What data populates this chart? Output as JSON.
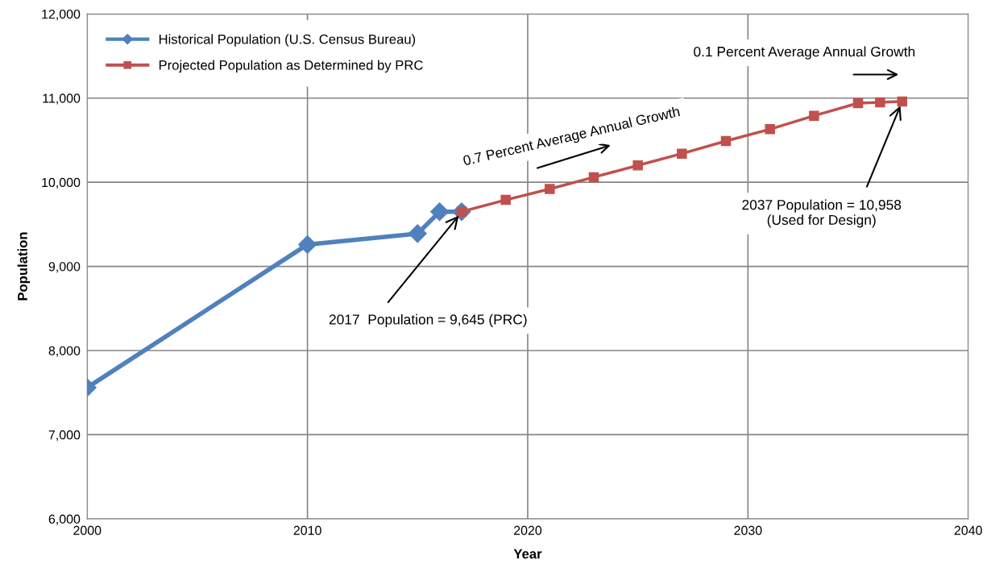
{
  "chart_data": {
    "type": "line",
    "xlabel": "Year",
    "ylabel": "Population",
    "xlim": [
      2000,
      2040
    ],
    "xticks": [
      2000,
      2010,
      2020,
      2030,
      2040
    ],
    "ylim": [
      6000,
      12000
    ],
    "yticks": [
      {
        "value": 6000,
        "label": "6,000"
      },
      {
        "value": 7000,
        "label": "7,000"
      },
      {
        "value": 8000,
        "label": "8,000"
      },
      {
        "value": 9000,
        "label": "9,000"
      },
      {
        "value": 10000,
        "label": "10,000"
      },
      {
        "value": 11000,
        "label": "11,000"
      },
      {
        "value": 12000,
        "label": "12,000"
      }
    ],
    "grid": true,
    "legend": "top left",
    "line_style": "solid",
    "series": [
      {
        "name": "Historical Population (U.S. Census Bureau)",
        "color": "#4f81bd",
        "marker": "diamond",
        "x": [
          2000,
          2010,
          2015,
          2016,
          2017
        ],
        "values": [
          7560,
          9260,
          9390,
          9650,
          9650
        ]
      },
      {
        "name": "Projected Population as Determined by PRC",
        "color": "#c0504d",
        "marker": "square",
        "x": [
          2017,
          2019,
          2021,
          2023,
          2025,
          2027,
          2029,
          2031,
          2033,
          2035,
          2036,
          2037
        ],
        "values": [
          9650,
          9790,
          9920,
          10060,
          10200,
          10340,
          10490,
          10630,
          10790,
          10940,
          10950,
          10960
        ]
      }
    ],
    "annotations": [
      {
        "text": "2017  Population = 9,645 (PRC)",
        "x": 2017,
        "y": 9645
      },
      {
        "text": "2037 Population = 10,958\n(Used for Design)",
        "x": 2037,
        "y": 10958
      },
      "0.7 Percent Average Annual Growth",
      "0.1 Percent Average Annual Growth"
    ]
  }
}
